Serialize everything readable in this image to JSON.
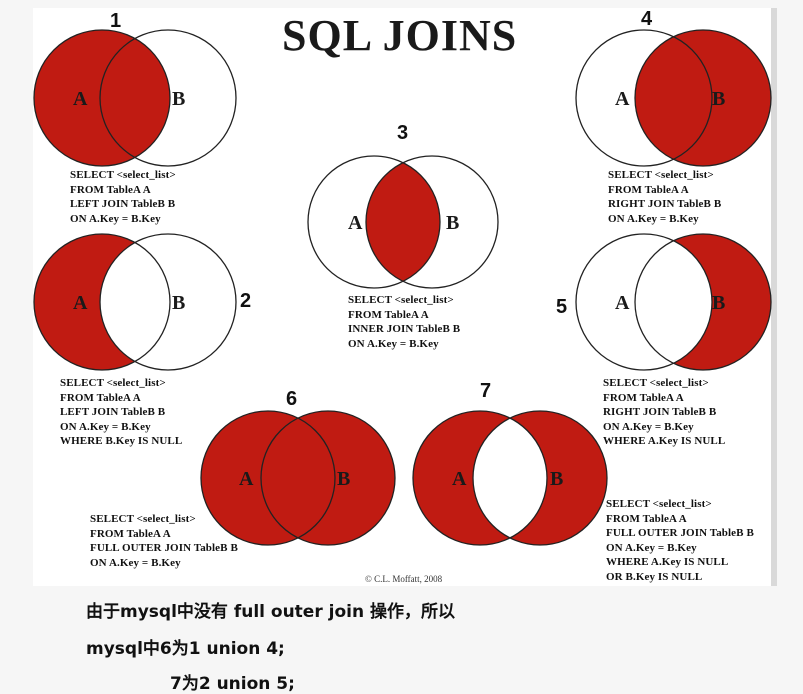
{
  "poster": {
    "title": "SQL JOINS",
    "copyright": "© C.L. Moffatt, 2008",
    "label_a": "A",
    "label_b": "B",
    "fill_color": "#c01b12",
    "outline_color": "#222222"
  },
  "diagrams": [
    {
      "number": "1",
      "shaded": "A (including overlap)",
      "sql": [
        "SELECT <select_list>",
        "FROM TableA A",
        "LEFT JOIN TableB B",
        "ON A.Key = B.Key"
      ]
    },
    {
      "number": "2",
      "shaded": "A only",
      "sql": [
        "SELECT <select_list>",
        "FROM TableA A",
        "LEFT JOIN TableB B",
        "ON A.Key = B.Key",
        "WHERE B.Key IS NULL"
      ]
    },
    {
      "number": "3",
      "shaded": "overlap only",
      "sql": [
        "SELECT <select_list>",
        "FROM TableA A",
        "INNER JOIN TableB B",
        "ON A.Key = B.Key"
      ]
    },
    {
      "number": "4",
      "shaded": "B (including overlap)",
      "sql": [
        "SELECT <select_list>",
        "FROM TableA A",
        "RIGHT JOIN TableB B",
        "ON A.Key = B.Key"
      ]
    },
    {
      "number": "5",
      "shaded": "B only",
      "sql": [
        "SELECT <select_list>",
        "FROM TableA A",
        "RIGHT JOIN TableB B",
        "ON A.Key = B.Key",
        "WHERE A.Key IS NULL"
      ]
    },
    {
      "number": "6",
      "shaded": "A and B",
      "sql": [
        "SELECT <select_list>",
        "FROM TableA A",
        "FULL OUTER JOIN TableB B",
        "ON A.Key = B.Key"
      ]
    },
    {
      "number": "7",
      "shaded": "A and B excluding overlap",
      "sql": [
        "SELECT <select_list>",
        "FROM TableA A",
        "FULL OUTER JOIN TableB B",
        "ON A.Key = B.Key",
        "WHERE A.Key IS NULL",
        "OR B.Key IS NULL"
      ]
    }
  ],
  "notes": {
    "line1": "由于mysql中没有 full outer join 操作，所以",
    "line2": "mysql中6为1 union 4;",
    "line3": "7为2 union 5;"
  }
}
